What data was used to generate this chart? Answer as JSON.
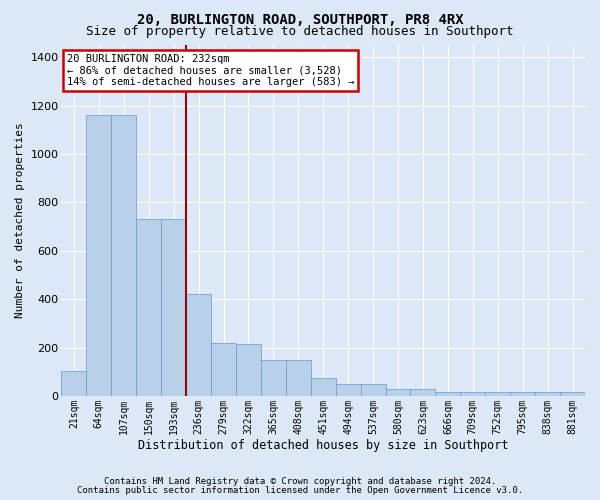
{
  "title": "20, BURLINGTON ROAD, SOUTHPORT, PR8 4RX",
  "subtitle": "Size of property relative to detached houses in Southport",
  "xlabel": "Distribution of detached houses by size in Southport",
  "ylabel": "Number of detached properties",
  "footer_line1": "Contains HM Land Registry data © Crown copyright and database right 2024.",
  "footer_line2": "Contains public sector information licensed under the Open Government Licence v3.0.",
  "categories": [
    "21sqm",
    "64sqm",
    "107sqm",
    "150sqm",
    "193sqm",
    "236sqm",
    "279sqm",
    "322sqm",
    "365sqm",
    "408sqm",
    "451sqm",
    "494sqm",
    "537sqm",
    "580sqm",
    "623sqm",
    "666sqm",
    "709sqm",
    "752sqm",
    "795sqm",
    "838sqm",
    "881sqm"
  ],
  "bar_heights": [
    105,
    1160,
    1160,
    730,
    730,
    420,
    220,
    215,
    150,
    150,
    75,
    50,
    50,
    30,
    30,
    18,
    18,
    15,
    15,
    15,
    15
  ],
  "bar_color": "#b8d0e8",
  "bar_edge_color": "#6699cc",
  "vline_x": 4.5,
  "vline_color": "#990000",
  "annotation_line1": "20 BURLINGTON ROAD: 232sqm",
  "annotation_line2": "← 86% of detached houses are smaller (3,528)",
  "annotation_line3": "14% of semi-detached houses are larger (583) →",
  "annotation_box_facecolor": "#ffffff",
  "annotation_box_edgecolor": "#cc0000",
  "ylim": [
    0,
    1450
  ],
  "yticks": [
    0,
    200,
    400,
    600,
    800,
    1000,
    1200,
    1400
  ],
  "bg_color": "#dce8f5",
  "grid_color": "#ffffff",
  "title_fontsize": 10,
  "subtitle_fontsize": 9,
  "tick_fontsize": 7,
  "ylabel_fontsize": 8,
  "xlabel_fontsize": 8.5,
  "footer_fontsize": 6.5,
  "annot_fontsize": 7.5
}
